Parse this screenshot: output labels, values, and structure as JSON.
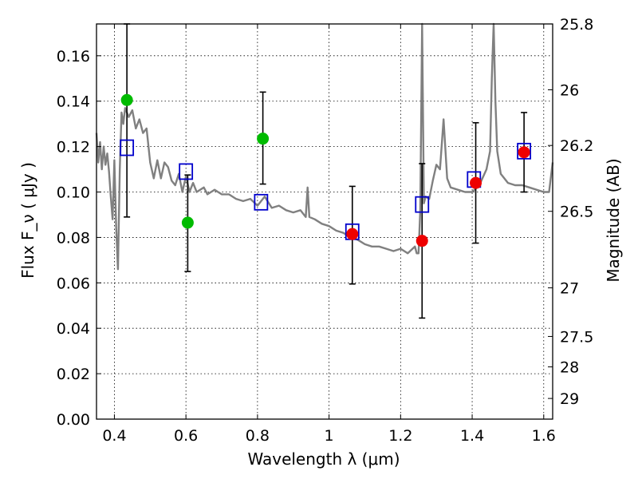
{
  "chart_data": {
    "type": "scatter",
    "xlabel": "Wavelength  λ (μm)",
    "ylabel": "Flux  F_ν  ( μJy )",
    "ylabel_right": "Magnitude (AB)",
    "xlim": [
      0.35,
      1.625
    ],
    "ylim": [
      0.0,
      0.174
    ],
    "x_ticks": [
      0.4,
      0.6,
      0.8,
      1.0,
      1.2,
      1.4,
      1.6
    ],
    "x_tick_labels": [
      "0.4",
      "0.6",
      "0.8",
      "1",
      "1.2",
      "1.4",
      "1.6"
    ],
    "y_ticks": [
      0.0,
      0.02,
      0.04,
      0.06,
      0.08,
      0.1,
      0.12,
      0.14,
      0.16
    ],
    "y_tick_labels": [
      "0.00",
      "0.02",
      "0.04",
      "0.06",
      "0.08",
      "0.10",
      "0.12",
      "0.14",
      "0.16"
    ],
    "right_ticks": [
      {
        "label": "25.8",
        "flux": 0.174
      },
      {
        "label": "26",
        "flux": 0.145
      },
      {
        "label": "26.2",
        "flux": 0.1205
      },
      {
        "label": "26.5",
        "flux": 0.0915
      },
      {
        "label": "27",
        "flux": 0.0578
      },
      {
        "label": "27.5",
        "flux": 0.0364
      },
      {
        "label": "28",
        "flux": 0.023
      },
      {
        "label": "29",
        "flux": 0.0091
      }
    ],
    "grid": true,
    "colors": {
      "sed": "#808080",
      "model": "#0000cc",
      "green": "#00bb00",
      "red": "#ee0000",
      "errorbar": "#000000"
    },
    "sed_line": {
      "x": [
        0.35,
        0.355,
        0.36,
        0.365,
        0.37,
        0.375,
        0.38,
        0.385,
        0.39,
        0.395,
        0.4,
        0.405,
        0.41,
        0.415,
        0.42,
        0.425,
        0.43,
        0.44,
        0.45,
        0.46,
        0.47,
        0.48,
        0.49,
        0.5,
        0.51,
        0.52,
        0.53,
        0.54,
        0.55,
        0.56,
        0.57,
        0.58,
        0.59,
        0.6,
        0.61,
        0.62,
        0.63,
        0.64,
        0.65,
        0.66,
        0.68,
        0.7,
        0.72,
        0.74,
        0.76,
        0.78,
        0.8,
        0.82,
        0.84,
        0.86,
        0.88,
        0.9,
        0.92,
        0.935,
        0.94,
        0.945,
        0.96,
        0.98,
        1.0,
        1.02,
        1.04,
        1.06,
        1.08,
        1.1,
        1.12,
        1.14,
        1.16,
        1.18,
        1.2,
        1.22,
        1.24,
        1.245,
        1.25,
        1.255,
        1.26,
        1.265,
        1.27,
        1.28,
        1.29,
        1.3,
        1.31,
        1.32,
        1.33,
        1.34,
        1.36,
        1.38,
        1.4,
        1.42,
        1.44,
        1.45,
        1.455,
        1.46,
        1.465,
        1.47,
        1.48,
        1.5,
        1.52,
        1.54,
        1.56,
        1.58,
        1.6,
        1.615,
        1.625
      ],
      "y": [
        0.126,
        0.113,
        0.122,
        0.11,
        0.12,
        0.112,
        0.117,
        0.109,
        0.098,
        0.088,
        0.114,
        0.084,
        0.066,
        0.11,
        0.135,
        0.13,
        0.137,
        0.133,
        0.136,
        0.128,
        0.132,
        0.126,
        0.128,
        0.113,
        0.106,
        0.114,
        0.106,
        0.113,
        0.111,
        0.105,
        0.103,
        0.108,
        0.1,
        0.107,
        0.1,
        0.104,
        0.1,
        0.101,
        0.102,
        0.099,
        0.101,
        0.099,
        0.099,
        0.097,
        0.096,
        0.097,
        0.094,
        0.098,
        0.093,
        0.094,
        0.092,
        0.091,
        0.092,
        0.089,
        0.102,
        0.089,
        0.088,
        0.086,
        0.085,
        0.083,
        0.082,
        0.08,
        0.079,
        0.077,
        0.076,
        0.076,
        0.075,
        0.074,
        0.075,
        0.073,
        0.076,
        0.073,
        0.073,
        0.092,
        0.174,
        0.095,
        0.098,
        0.097,
        0.105,
        0.112,
        0.11,
        0.132,
        0.106,
        0.102,
        0.101,
        0.1,
        0.1,
        0.103,
        0.11,
        0.118,
        0.15,
        0.174,
        0.14,
        0.118,
        0.108,
        0.104,
        0.103,
        0.103,
        0.102,
        0.101,
        0.1,
        0.1,
        0.113
      ]
    },
    "model_points": {
      "x": [
        0.435,
        0.6,
        0.81,
        1.065,
        1.26,
        1.405,
        1.545
      ],
      "y": [
        0.1195,
        0.109,
        0.0955,
        0.0825,
        0.0945,
        0.1055,
        0.118
      ]
    },
    "observed_points": {
      "x": [
        0.435,
        0.605,
        0.815,
        1.065,
        1.26,
        1.41,
        1.545
      ],
      "y": [
        0.1405,
        0.0865,
        0.1235,
        0.0815,
        0.0785,
        0.104,
        0.1175
      ],
      "yerr_low": [
        0.089,
        0.065,
        0.1035,
        0.0595,
        0.0445,
        0.0775,
        0.1
      ],
      "yerr_high": [
        0.174,
        0.1075,
        0.144,
        0.1025,
        0.1125,
        0.1305,
        0.135
      ],
      "colors": [
        "green",
        "green",
        "green",
        "red",
        "red",
        "red",
        "red"
      ]
    }
  }
}
